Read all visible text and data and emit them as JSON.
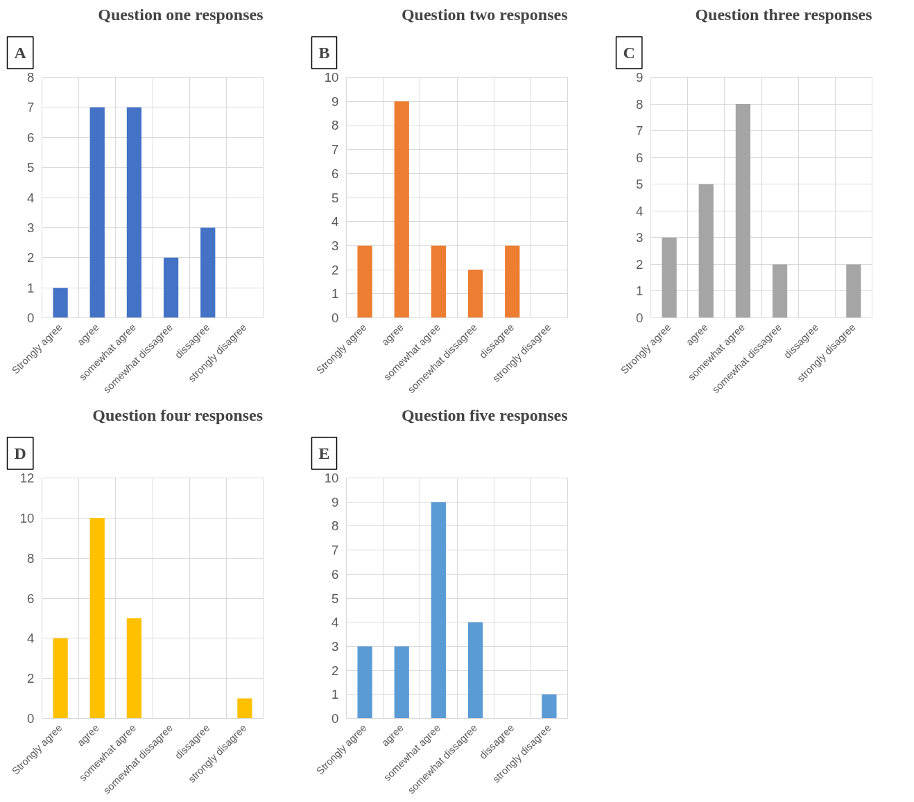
{
  "chart_data": [
    {
      "type": "bar",
      "title": "Question one responses",
      "annotations": [
        "A"
      ],
      "categories": [
        "Strongly agree",
        "agree",
        "somewhat agree",
        "somewhat dissagree",
        "dissagree",
        "strongly disagree"
      ],
      "values": [
        1,
        7,
        7,
        2,
        3,
        0
      ],
      "color": "#4472c4",
      "ylim": [
        0,
        8
      ],
      "yticks": [
        0,
        1,
        2,
        3,
        4,
        5,
        6,
        7,
        8
      ],
      "grid": true
    },
    {
      "type": "bar",
      "title": "Question two responses",
      "annotations": [
        "B"
      ],
      "categories": [
        "Strongly agree",
        "agree",
        "somewhat agree",
        "somewhat dissagree",
        "dissagree",
        "strongly disagree"
      ],
      "values": [
        3,
        9,
        3,
        2,
        3,
        0
      ],
      "color": "#ed7d31",
      "ylim": [
        0,
        10
      ],
      "yticks": [
        0,
        1,
        2,
        3,
        4,
        5,
        6,
        7,
        8,
        9,
        10
      ],
      "grid": true
    },
    {
      "type": "bar",
      "title": "Question three responses",
      "annotations": [
        "C"
      ],
      "categories": [
        "Strongly agree",
        "agree",
        "somewhat agree",
        "somewhat dissagree",
        "dissagree",
        "strongly disagree"
      ],
      "values": [
        3,
        5,
        8,
        2,
        0,
        2
      ],
      "color": "#a5a5a5",
      "ylim": [
        0,
        9
      ],
      "yticks": [
        0,
        1,
        2,
        3,
        4,
        5,
        6,
        7,
        8,
        9
      ],
      "grid": true
    },
    {
      "type": "bar",
      "title": "Question four responses",
      "annotations": [
        "D"
      ],
      "categories": [
        "Strongly agree",
        "agree",
        "somewhat agree",
        "somewhat dissagree",
        "dissagree",
        "strongly disagree"
      ],
      "values": [
        4,
        10,
        5,
        0,
        0,
        1
      ],
      "color": "#ffc000",
      "ylim": [
        0,
        12
      ],
      "yticks": [
        0,
        2,
        4,
        6,
        8,
        10,
        12
      ],
      "grid": true
    },
    {
      "type": "bar",
      "title": "Question five responses",
      "annotations": [
        "E"
      ],
      "categories": [
        "Strongly agree",
        "agree",
        "somewhat agree",
        "somewhat dissagree",
        "dissagree",
        "strongly disagree"
      ],
      "values": [
        3,
        3,
        9,
        4,
        0,
        1
      ],
      "color": "#5b9bd5",
      "ylim": [
        0,
        10
      ],
      "yticks": [
        0,
        1,
        2,
        3,
        4,
        5,
        6,
        7,
        8,
        9,
        10
      ],
      "grid": true
    }
  ]
}
